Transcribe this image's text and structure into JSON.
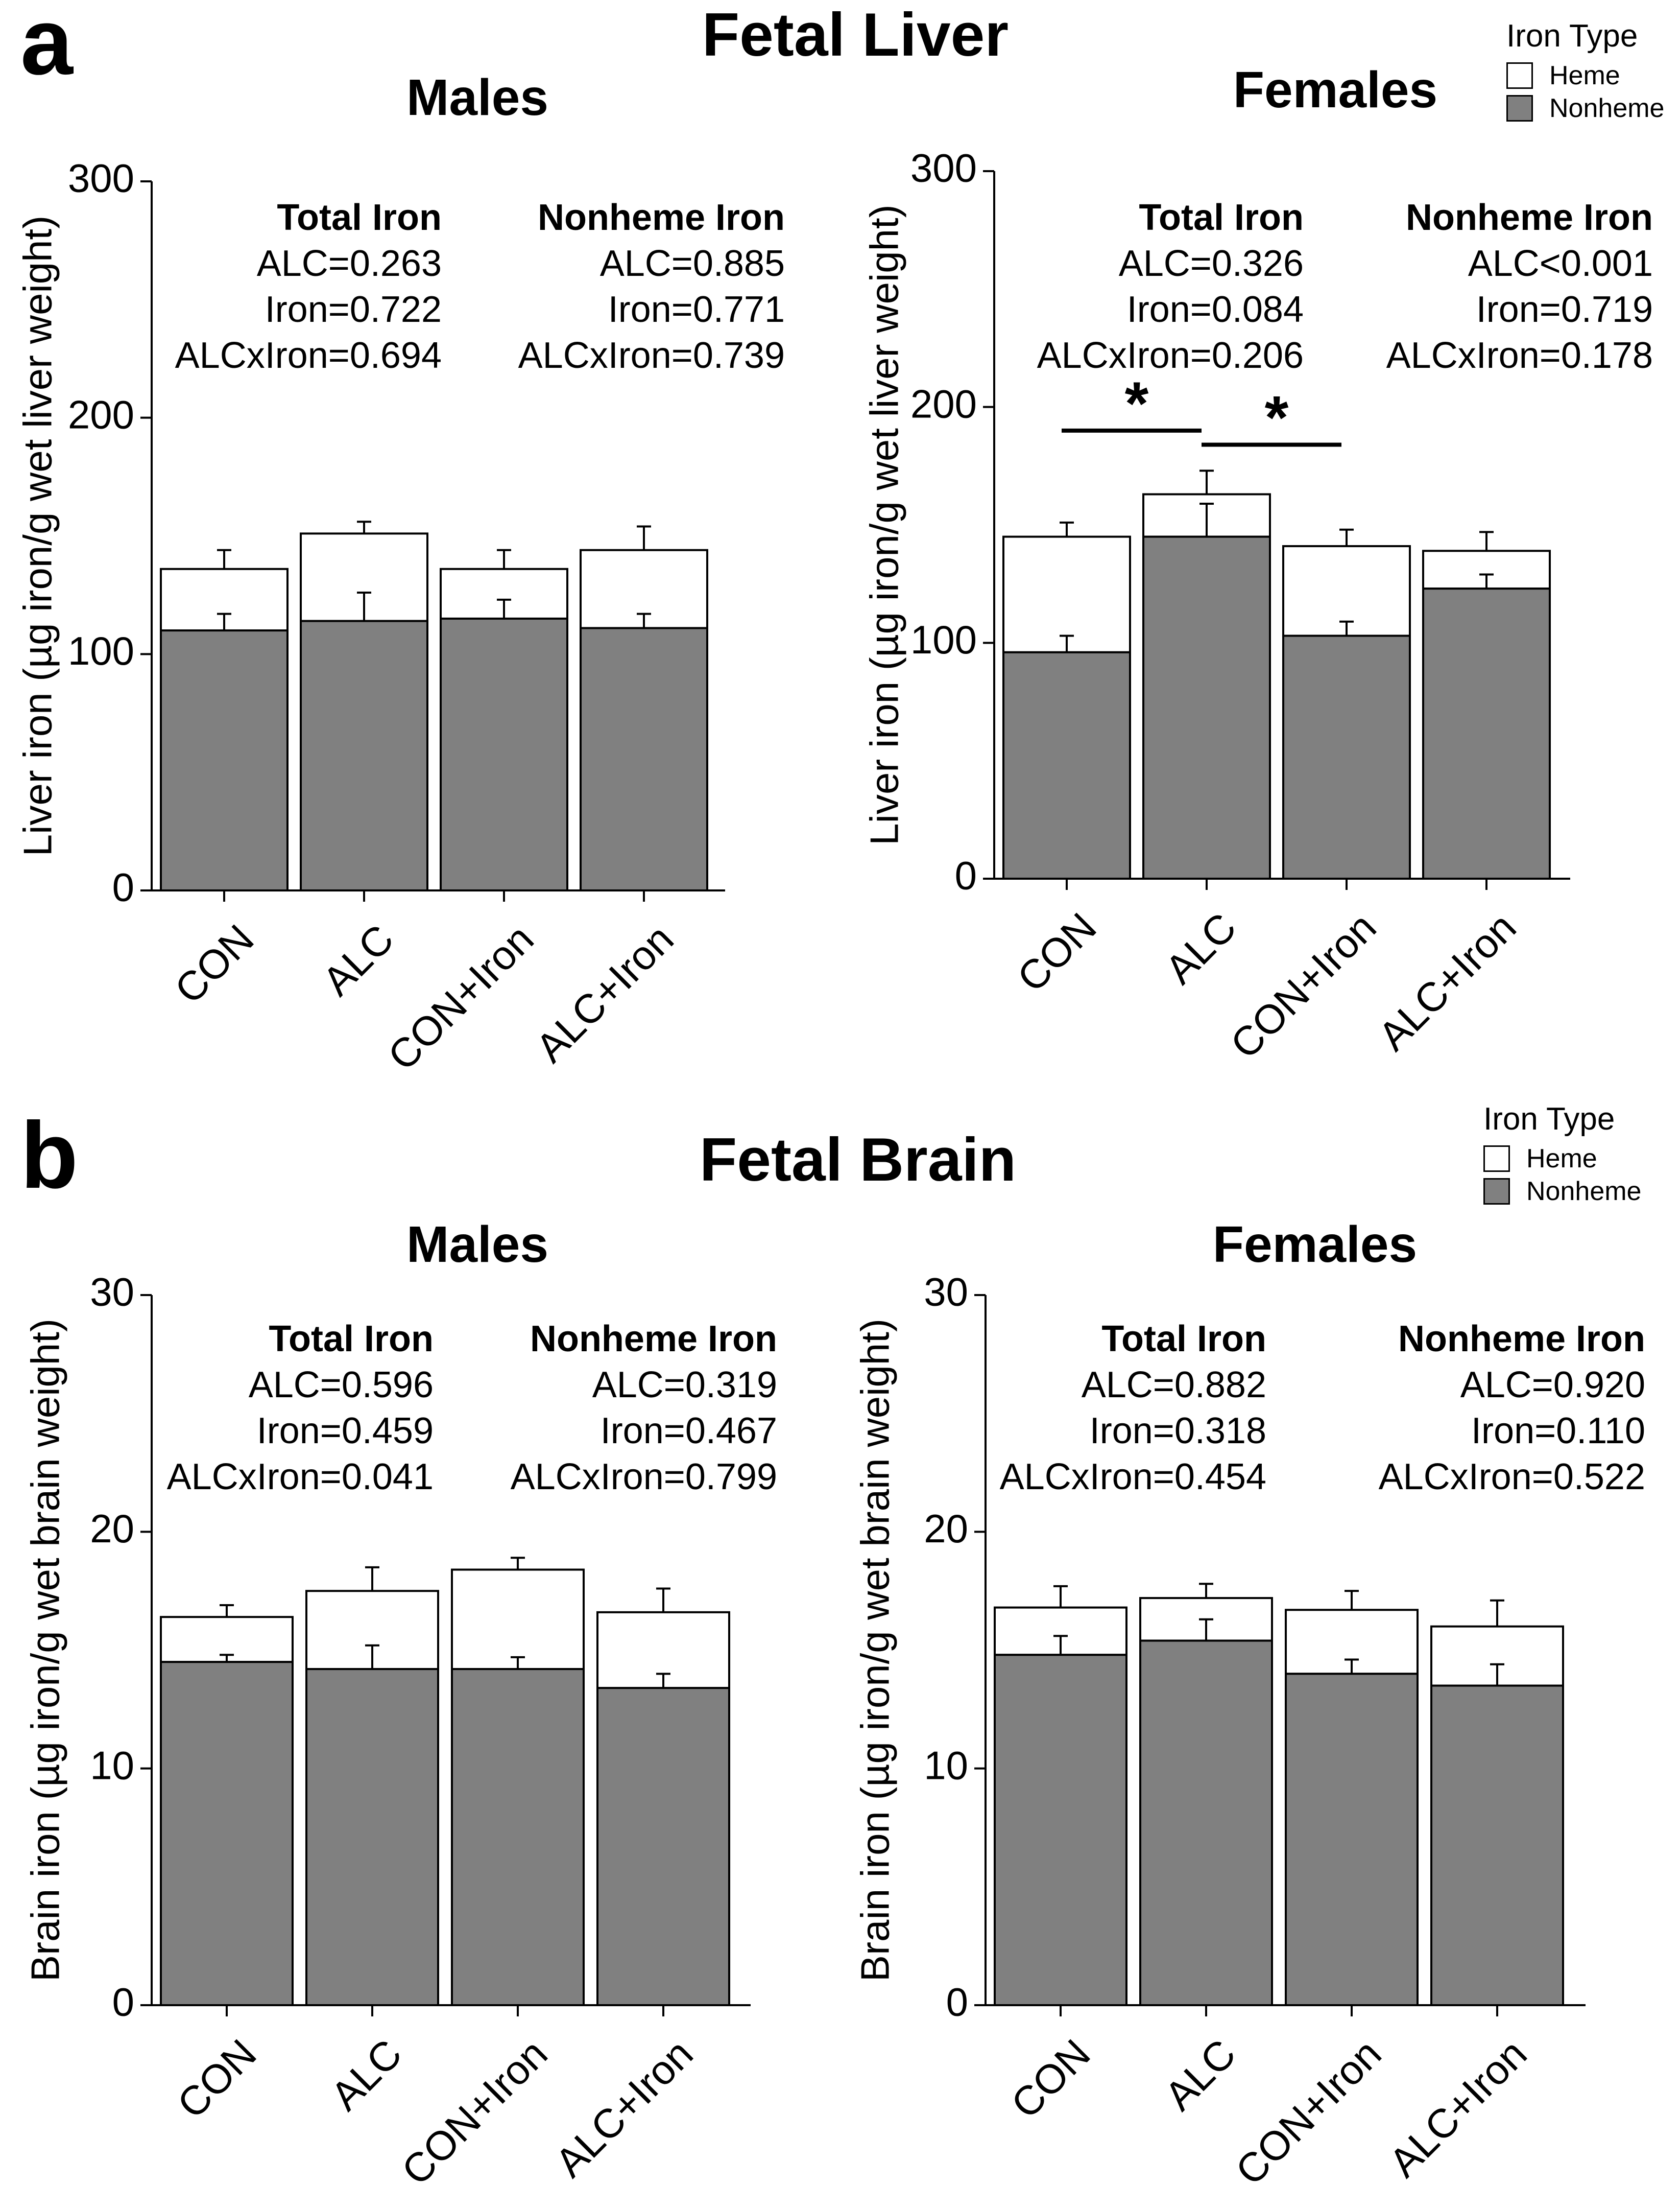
{
  "panels": {
    "a": {
      "letter": "a",
      "title": "Fetal Liver",
      "legend": {
        "title": "Iron Type",
        "items": [
          "Heme",
          "Nonheme"
        ]
      }
    },
    "b": {
      "letter": "b",
      "title": "Fetal Brain",
      "legend": {
        "title": "Iron Type",
        "items": [
          "Heme",
          "Nonheme"
        ]
      }
    }
  },
  "colors": {
    "nonheme": "#808080",
    "heme": "#ffffff",
    "stroke": "#000000"
  },
  "chart_data": [
    {
      "id": "liver_males",
      "type": "bar",
      "stacked": true,
      "title": "Males",
      "ylabel": "Liver iron (µg iron/g wet liver weight)",
      "ylim": [
        0,
        300
      ],
      "yticks": [
        "0",
        "100",
        "200",
        "300"
      ],
      "categories": [
        "CON",
        "ALC",
        "CON+Iron",
        "ALC+Iron"
      ],
      "series": [
        {
          "name": "Nonheme",
          "values": [
            110,
            114,
            115,
            111
          ],
          "errors": [
            7,
            12,
            8,
            6
          ]
        },
        {
          "name": "Heme",
          "values": [
            26,
            37,
            21,
            33
          ],
          "errors": [
            8,
            5,
            8,
            10
          ]
        }
      ],
      "stats": [
        {
          "heading": "Total Iron",
          "lines": [
            "ALC=0.263",
            "Iron=0.722",
            "ALCxIron=0.694"
          ]
        },
        {
          "heading": "Nonheme Iron",
          "lines": [
            "ALC=0.885",
            "Iron=0.771",
            "ALCxIron=0.739"
          ]
        }
      ],
      "significance": []
    },
    {
      "id": "liver_females",
      "type": "bar",
      "stacked": true,
      "title": "Females",
      "ylabel": "Liver iron (µg iron/g wet liver weight)",
      "ylim": [
        0,
        300
      ],
      "yticks": [
        "0",
        "100",
        "200",
        "300"
      ],
      "categories": [
        "CON",
        "ALC",
        "CON+Iron",
        "ALC+Iron"
      ],
      "series": [
        {
          "name": "Nonheme",
          "values": [
            96,
            145,
            103,
            123
          ],
          "errors": [
            7,
            14,
            6,
            6
          ]
        },
        {
          "name": "Heme",
          "values": [
            49,
            18,
            38,
            16
          ],
          "errors": [
            6,
            10,
            7,
            8
          ]
        }
      ],
      "stats": [
        {
          "heading": "Total Iron",
          "lines": [
            "ALC=0.326",
            "Iron=0.084",
            "ALCxIron=0.206"
          ]
        },
        {
          "heading": "Nonheme Iron",
          "lines": [
            "ALC<0.001",
            "Iron=0.719",
            "ALCxIron=0.178"
          ]
        }
      ],
      "significance": [
        {
          "from": 0,
          "to": 1,
          "label": "*",
          "y": 190
        },
        {
          "from": 1,
          "to": 2,
          "label": "*",
          "y": 184
        }
      ]
    },
    {
      "id": "brain_males",
      "type": "bar",
      "stacked": true,
      "title": "Males",
      "ylabel": "Brain iron (µg iron/g wet brain weight)",
      "ylim": [
        0,
        30
      ],
      "yticks": [
        "0",
        "10",
        "20",
        "30"
      ],
      "categories": [
        "CON",
        "ALC",
        "CON+Iron",
        "ALC+Iron"
      ],
      "series": [
        {
          "name": "Nonheme",
          "values": [
            14.5,
            14.2,
            14.2,
            13.4
          ],
          "errors": [
            0.3,
            1.0,
            0.5,
            0.6
          ]
        },
        {
          "name": "Heme",
          "values": [
            1.9,
            3.3,
            4.2,
            3.2
          ],
          "errors": [
            0.5,
            1.0,
            0.5,
            1.0
          ]
        }
      ],
      "stats": [
        {
          "heading": "Total Iron",
          "lines": [
            "ALC=0.596",
            "Iron=0.459",
            "ALCxIron=0.041"
          ]
        },
        {
          "heading": "Nonheme Iron",
          "lines": [
            "ALC=0.319",
            "Iron=0.467",
            "ALCxIron=0.799"
          ]
        }
      ],
      "significance": []
    },
    {
      "id": "brain_females",
      "type": "bar",
      "stacked": true,
      "title": "Females",
      "ylabel": "Brain iron (µg iron/g wet brain weight)",
      "ylim": [
        0,
        30
      ],
      "yticks": [
        "0",
        "10",
        "20",
        "30"
      ],
      "categories": [
        "CON",
        "ALC",
        "CON+Iron",
        "ALC+Iron"
      ],
      "series": [
        {
          "name": "Nonheme",
          "values": [
            14.8,
            15.4,
            14.0,
            13.5
          ],
          "errors": [
            0.8,
            0.9,
            0.6,
            0.9
          ]
        },
        {
          "name": "Heme",
          "values": [
            2.0,
            1.8,
            2.7,
            2.5
          ],
          "errors": [
            0.9,
            0.6,
            0.8,
            1.1
          ]
        }
      ],
      "stats": [
        {
          "heading": "Total Iron",
          "lines": [
            "ALC=0.882",
            "Iron=0.318",
            "ALCxIron=0.454"
          ]
        },
        {
          "heading": "Nonheme Iron",
          "lines": [
            "ALC=0.920",
            "Iron=0.110",
            "ALCxIron=0.522"
          ]
        }
      ],
      "significance": []
    }
  ]
}
